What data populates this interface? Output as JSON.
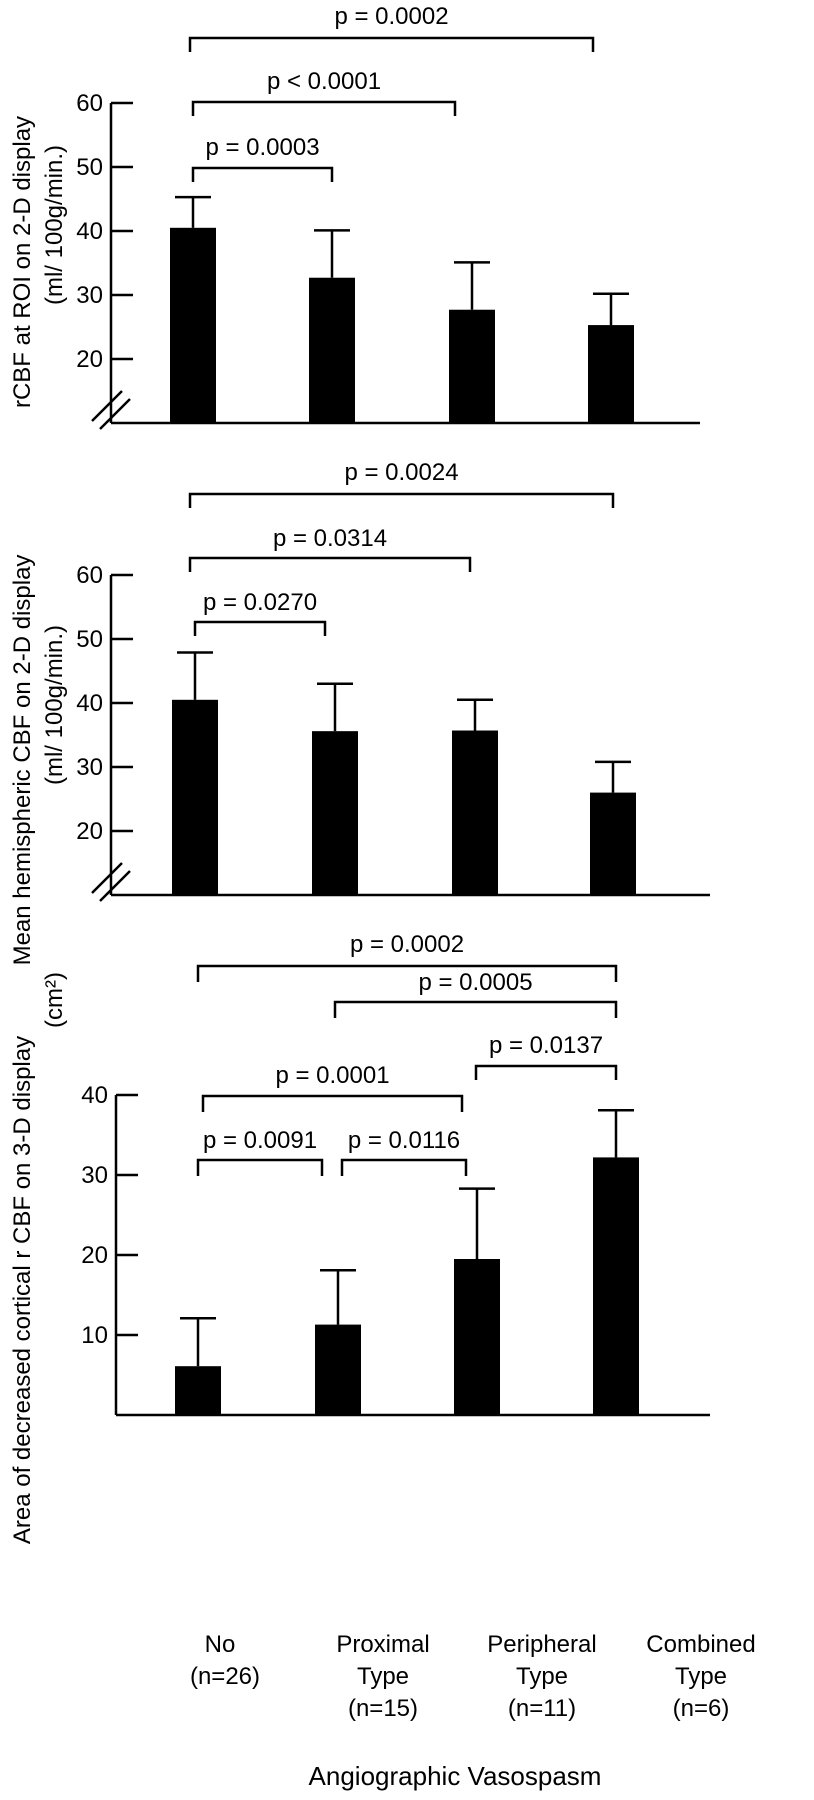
{
  "chart_data": [
    {
      "type": "bar",
      "ylabel_line1": "rCBF at ROI on 2-D display",
      "ylabel_line2": "(ml/ 100g/min.)",
      "ylim": [
        10,
        60
      ],
      "yticks": [
        20,
        30,
        40,
        50,
        60
      ],
      "axis_break": true,
      "categories": [
        "No",
        "Proximal Type",
        "Peripheral Type",
        "Combined Type"
      ],
      "values": [
        40.5,
        32.7,
        27.7,
        25.3
      ],
      "errors": [
        4.8,
        7.4,
        7.4,
        4.9
      ],
      "comparisons": [
        {
          "from": 0,
          "to": 1,
          "label": "p = 0.0003"
        },
        {
          "from": 0,
          "to": 2,
          "label": "p < 0.0001"
        },
        {
          "from": 0,
          "to": 3,
          "label": "p = 0.0002"
        }
      ]
    },
    {
      "type": "bar",
      "ylabel_line1": "Mean hemispheric CBF on 2-D display",
      "ylabel_line2": "(ml/ 100g/min.)",
      "ylim": [
        10,
        60
      ],
      "yticks": [
        20,
        30,
        40,
        50,
        60
      ],
      "axis_break": true,
      "categories": [
        "No",
        "Proximal Type",
        "Peripheral Type",
        "Combined Type"
      ],
      "values": [
        40.5,
        35.6,
        35.7,
        26
      ],
      "errors": [
        7.4,
        7.4,
        4.8,
        4.8
      ],
      "comparisons": [
        {
          "from": 0,
          "to": 1,
          "label": "p = 0.0270"
        },
        {
          "from": 0,
          "to": 2,
          "label": "p = 0.0314"
        },
        {
          "from": 0,
          "to": 3,
          "label": "p = 0.0024"
        }
      ]
    },
    {
      "type": "bar",
      "ylabel_line1": "Area of decreased  cortical r CBF on 3-D display",
      "ylabel_line2": "(cm²)",
      "ylim": [
        0,
        40
      ],
      "yticks": [
        10,
        20,
        30,
        40
      ],
      "axis_break": false,
      "categories": [
        "No",
        "Proximal Type",
        "Peripheral Type",
        "Combined Type"
      ],
      "values": [
        6.1,
        11.3,
        19.5,
        32.2
      ],
      "errors": [
        6,
        6.8,
        8.8,
        5.9
      ],
      "comparisons": [
        {
          "from": 0,
          "to": 1,
          "label": "p = 0.0091"
        },
        {
          "from": 1,
          "to": 2,
          "label": "p = 0.0116"
        },
        {
          "from": 0,
          "to": 2,
          "label": "p = 0.0001"
        },
        {
          "from": 2,
          "to": 3,
          "label": "p = 0.0137"
        },
        {
          "from": 1,
          "to": 3,
          "label": "p = 0.0005"
        },
        {
          "from": 0,
          "to": 3,
          "label": "p = 0.0002"
        }
      ]
    }
  ],
  "x_categories": [
    {
      "line1": "No",
      "line2": "(n=26)",
      "line3": ""
    },
    {
      "line1": "Proximal",
      "line2": "Type",
      "line3": "(n=15)"
    },
    {
      "line1": "Peripheral",
      "line2": "Type",
      "line3": "(n=11)"
    },
    {
      "line1": "Combined",
      "line2": "Type",
      "line3": "(n=6)"
    }
  ],
  "xlabel": "Angiographic Vasospasm"
}
